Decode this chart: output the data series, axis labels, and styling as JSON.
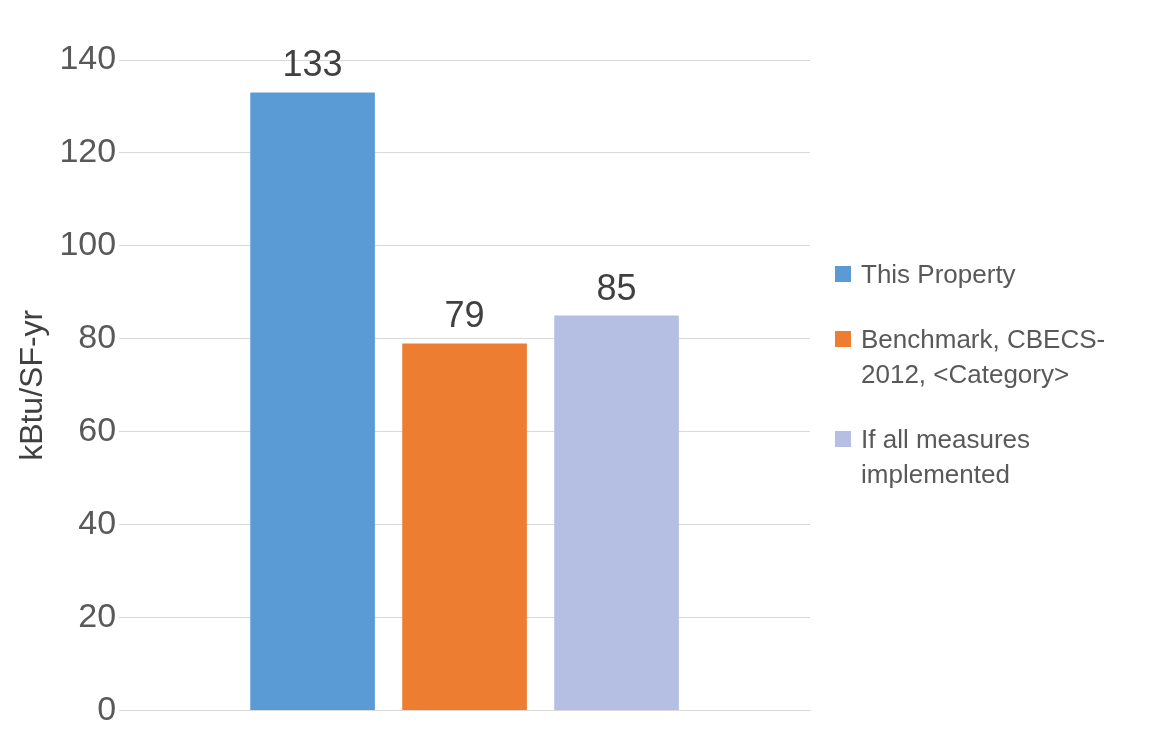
{
  "chart_data": {
    "type": "bar",
    "ylabel": "kBtu/SF-yr",
    "categories": [
      null
    ],
    "series": [
      {
        "name": "This Property",
        "color": "#5b9bd5",
        "values": [
          133
        ]
      },
      {
        "name": "Benchmark, CBECS-2012, <Category>",
        "color": "#ed7d31",
        "values": [
          79
        ]
      },
      {
        "name": "If all measures implemented",
        "color": "#b4bfe3",
        "values": [
          85
        ]
      }
    ],
    "ylim": [
      0,
      140
    ],
    "yticks": [
      0,
      20,
      40,
      60,
      80,
      100,
      120,
      140
    ],
    "grid": "y",
    "legend": "right",
    "data_labels": true
  }
}
